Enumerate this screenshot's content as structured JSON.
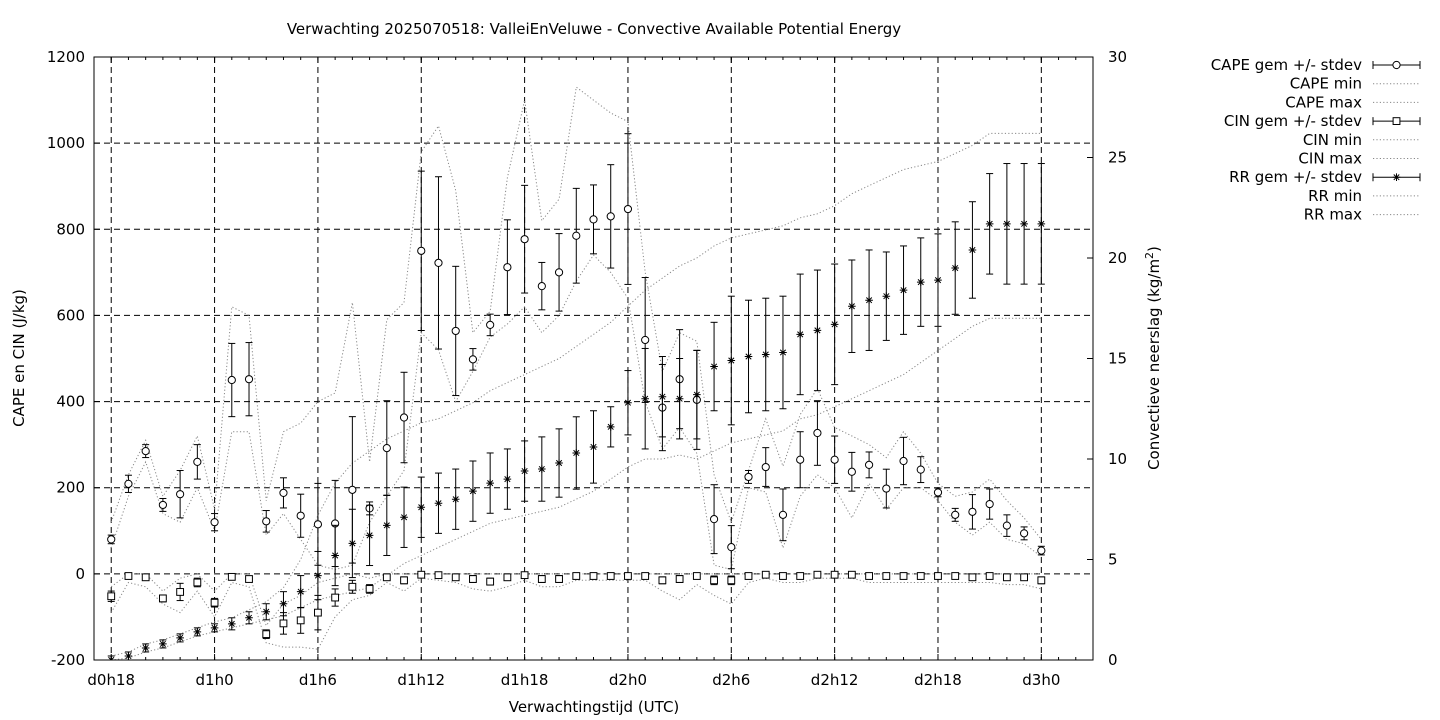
{
  "chart_data": {
    "type": "line",
    "title": "Verwachting 2025070518: ValleiEnVeluwe - Convective Available Potential Energy",
    "xlabel": "Verwachtingstijd (UTC)",
    "ylabel": "CAPE en CIN (J/kg)",
    "y2label_main": "Convectieve neerslag (kg/m",
    "y2label_sup": "2",
    "y2label_end": ")",
    "x_tick_labels": [
      "d0h18",
      "d1h0",
      "d1h6",
      "d1h12",
      "d1h18",
      "d2h0",
      "d2h6",
      "d2h12",
      "d2h18",
      "d3h0"
    ],
    "x_tick_hours": [
      18,
      24,
      30,
      36,
      42,
      48,
      54,
      60,
      66,
      72
    ],
    "xlim_hours": [
      17,
      75
    ],
    "ylim": [
      -200,
      1200
    ],
    "y_ticks": [
      "-200",
      "0",
      "200",
      "400",
      "600",
      "800",
      "1000",
      "1200"
    ],
    "y2lim": [
      0,
      30
    ],
    "y2_ticks": [
      "0",
      "5",
      "10",
      "15",
      "20",
      "25",
      "30"
    ],
    "grid": true,
    "legend_position": "outside-right",
    "x_hours": [
      18,
      19,
      20,
      21,
      22,
      23,
      24,
      25,
      26,
      27,
      28,
      29,
      30,
      31,
      32,
      33,
      34,
      35,
      36,
      37,
      38,
      39,
      40,
      41,
      42,
      43,
      44,
      45,
      46,
      47,
      48,
      49,
      50,
      51,
      52,
      53,
      54,
      55,
      56,
      57,
      58,
      59,
      60,
      61,
      62,
      63,
      64,
      65,
      66,
      67,
      68,
      69,
      70,
      71,
      72
    ],
    "series": [
      {
        "name": "CAPE gem +/- stdev",
        "axis": "y1",
        "marker": "circle",
        "values": [
          80,
          209,
          285,
          160,
          185,
          260,
          120,
          450,
          452,
          122,
          188,
          135,
          115,
          117,
          195,
          152,
          292,
          363,
          750,
          722,
          564,
          498,
          578,
          712,
          777,
          668,
          700,
          785,
          823,
          830,
          847,
          543,
          386,
          452,
          404,
          127,
          62,
          225,
          248,
          137,
          265,
          327,
          265,
          237,
          253,
          198,
          262,
          242,
          189,
          137,
          144,
          162,
          112,
          94,
          54
        ],
        "err": [
          10,
          20,
          15,
          15,
          55,
          40,
          20,
          85,
          85,
          25,
          35,
          50,
          95,
          100,
          170,
          15,
          110,
          105,
          185,
          200,
          150,
          25,
          25,
          110,
          125,
          55,
          90,
          110,
          80,
          120,
          175,
          145,
          100,
          115,
          115,
          80,
          50,
          15,
          45,
          60,
          65,
          75,
          55,
          45,
          30,
          45,
          55,
          30,
          10,
          15,
          40,
          35,
          25,
          15,
          10
        ]
      },
      {
        "name": "CAPE min",
        "axis": "y1",
        "style": "dotted",
        "values": [
          60,
          180,
          260,
          140,
          120,
          200,
          100,
          330,
          330,
          90,
          140,
          80,
          20,
          10,
          20,
          120,
          180,
          240,
          560,
          520,
          400,
          470,
          550,
          580,
          620,
          560,
          600,
          680,
          740,
          700,
          640,
          400,
          290,
          340,
          280,
          20,
          10,
          200,
          190,
          60,
          180,
          230,
          200,
          130,
          210,
          150,
          200,
          200,
          170,
          120,
          90,
          120,
          80,
          70,
          40
        ]
      },
      {
        "name": "CAPE max",
        "axis": "y1",
        "style": "dotted",
        "values": [
          120,
          230,
          310,
          180,
          240,
          320,
          150,
          620,
          600,
          170,
          330,
          350,
          400,
          420,
          630,
          260,
          590,
          630,
          980,
          1040,
          890,
          560,
          610,
          920,
          1100,
          820,
          870,
          1130,
          1100,
          1070,
          1050,
          700,
          470,
          560,
          540,
          230,
          120,
          240,
          360,
          250,
          370,
          430,
          340,
          320,
          300,
          270,
          330,
          280,
          210,
          180,
          190,
          220,
          170,
          130,
          80
        ]
      },
      {
        "name": "CIN gem +/- stdev",
        "axis": "y1",
        "marker": "square",
        "values": [
          -52,
          -5,
          -8,
          -57,
          -42,
          -20,
          -67,
          -7,
          -12,
          -140,
          -115,
          -108,
          -90,
          -55,
          -30,
          -35,
          -8,
          -15,
          -2,
          -3,
          -8,
          -12,
          -18,
          -8,
          -3,
          -12,
          -12,
          -5,
          -5,
          -5,
          -5,
          -5,
          -15,
          -12,
          -5,
          -15,
          -15,
          -5,
          -2,
          -5,
          -5,
          -2,
          -2,
          -2,
          -5,
          -5,
          -5,
          -5,
          -5,
          -5,
          -8,
          -5,
          -8,
          -8,
          -15
        ],
        "err": [
          12,
          3,
          4,
          8,
          20,
          10,
          10,
          4,
          6,
          10,
          25,
          30,
          40,
          20,
          15,
          10,
          5,
          8,
          3,
          3,
          5,
          8,
          8,
          5,
          3,
          8,
          8,
          3,
          3,
          3,
          3,
          3,
          8,
          8,
          3,
          10,
          10,
          3,
          2,
          3,
          3,
          2,
          2,
          2,
          3,
          3,
          3,
          3,
          3,
          3,
          4,
          3,
          4,
          4,
          8
        ]
      },
      {
        "name": "CIN min",
        "axis": "y1",
        "style": "dotted",
        "values": [
          -90,
          -20,
          -30,
          -70,
          -90,
          -40,
          -100,
          -20,
          -30,
          -160,
          -170,
          -170,
          -175,
          -100,
          -60,
          -50,
          -20,
          -40,
          -10,
          -15,
          -20,
          -35,
          -40,
          -30,
          -15,
          -30,
          -30,
          -15,
          -15,
          -15,
          -15,
          -15,
          -40,
          -60,
          -25,
          -50,
          -70,
          -20,
          -10,
          -20,
          -20,
          -10,
          -10,
          -10,
          -20,
          -20,
          -20,
          -20,
          -20,
          -20,
          -20,
          -20,
          -25,
          -25,
          -35
        ]
      },
      {
        "name": "CIN max",
        "axis": "y1",
        "style": "dotted",
        "values": [
          -30,
          0,
          0,
          -40,
          -10,
          0,
          -40,
          0,
          0,
          -120,
          -70,
          -50,
          -20,
          -10,
          0,
          -10,
          0,
          0,
          0,
          0,
          0,
          0,
          0,
          0,
          0,
          0,
          0,
          0,
          0,
          0,
          0,
          0,
          0,
          0,
          0,
          0,
          0,
          0,
          0,
          0,
          0,
          0,
          0,
          0,
          0,
          0,
          0,
          0,
          0,
          0,
          0,
          0,
          0,
          0,
          0
        ]
      },
      {
        "name": "RR gem +/- stdev",
        "axis": "y2",
        "marker": "star",
        "values": [
          0.0,
          0.2,
          0.6,
          0.8,
          1.1,
          1.4,
          1.6,
          1.8,
          2.1,
          2.4,
          2.8,
          3.4,
          4.2,
          5.2,
          5.8,
          6.2,
          6.7,
          7.1,
          7.6,
          7.8,
          8.0,
          8.4,
          8.8,
          9.0,
          9.4,
          9.5,
          9.8,
          10.3,
          10.6,
          11.6,
          12.8,
          13.0,
          13.1,
          13.0,
          13.2,
          14.6,
          14.9,
          15.1,
          15.2,
          15.3,
          16.2,
          16.4,
          16.7,
          17.6,
          17.9,
          18.1,
          18.4,
          18.8,
          18.9,
          19.5,
          20.4,
          21.7,
          21.7,
          21.7,
          21.7
        ],
        "err": [
          0.2,
          0.2,
          0.2,
          0.2,
          0.2,
          0.2,
          0.2,
          0.3,
          0.3,
          0.4,
          0.6,
          0.8,
          1.2,
          1.5,
          1.7,
          1.5,
          1.5,
          1.5,
          1.5,
          1.5,
          1.5,
          1.5,
          1.5,
          1.5,
          1.5,
          1.6,
          1.7,
          1.8,
          1.8,
          1.0,
          1.6,
          2.5,
          2.0,
          2.0,
          2.2,
          2.2,
          3.2,
          2.8,
          2.8,
          2.8,
          3.0,
          3.0,
          3.0,
          2.3,
          2.5,
          2.2,
          2.2,
          2.2,
          2.3,
          2.3,
          2.4,
          2.5,
          3.0,
          3.0,
          3.0
        ]
      },
      {
        "name": "RR min",
        "axis": "y2",
        "style": "dotted",
        "values": [
          0.0,
          0.1,
          0.4,
          0.6,
          0.9,
          1.2,
          1.4,
          1.6,
          1.8,
          2.0,
          2.2,
          2.6,
          3.0,
          3.2,
          3.4,
          3.6,
          4.2,
          4.8,
          5.2,
          5.6,
          6.0,
          6.4,
          6.8,
          7.0,
          7.2,
          7.4,
          7.6,
          8.0,
          8.4,
          9.0,
          9.6,
          10.0,
          10.0,
          10.2,
          10.0,
          10.4,
          10.8,
          11.0,
          11.2,
          11.4,
          12.0,
          12.2,
          12.6,
          13.0,
          13.4,
          13.8,
          14.2,
          14.8,
          15.4,
          16.0,
          16.6,
          17.0,
          17.0,
          17.0,
          17.0
        ]
      },
      {
        "name": "RR max",
        "axis": "y2",
        "style": "dotted",
        "values": [
          0.2,
          0.4,
          0.8,
          1.0,
          1.3,
          1.6,
          1.9,
          2.1,
          2.5,
          2.9,
          3.6,
          5.0,
          7.2,
          8.8,
          9.8,
          10.4,
          11.0,
          11.4,
          11.8,
          12.0,
          12.4,
          12.8,
          13.4,
          13.8,
          14.2,
          14.6,
          15.0,
          15.6,
          16.2,
          16.8,
          17.6,
          18.4,
          19.0,
          19.6,
          20.0,
          20.6,
          21.0,
          21.2,
          21.4,
          21.6,
          22.0,
          22.2,
          22.6,
          23.2,
          23.6,
          24.0,
          24.4,
          24.6,
          24.8,
          25.2,
          25.6,
          26.2,
          26.2,
          26.2,
          26.2
        ]
      }
    ]
  }
}
